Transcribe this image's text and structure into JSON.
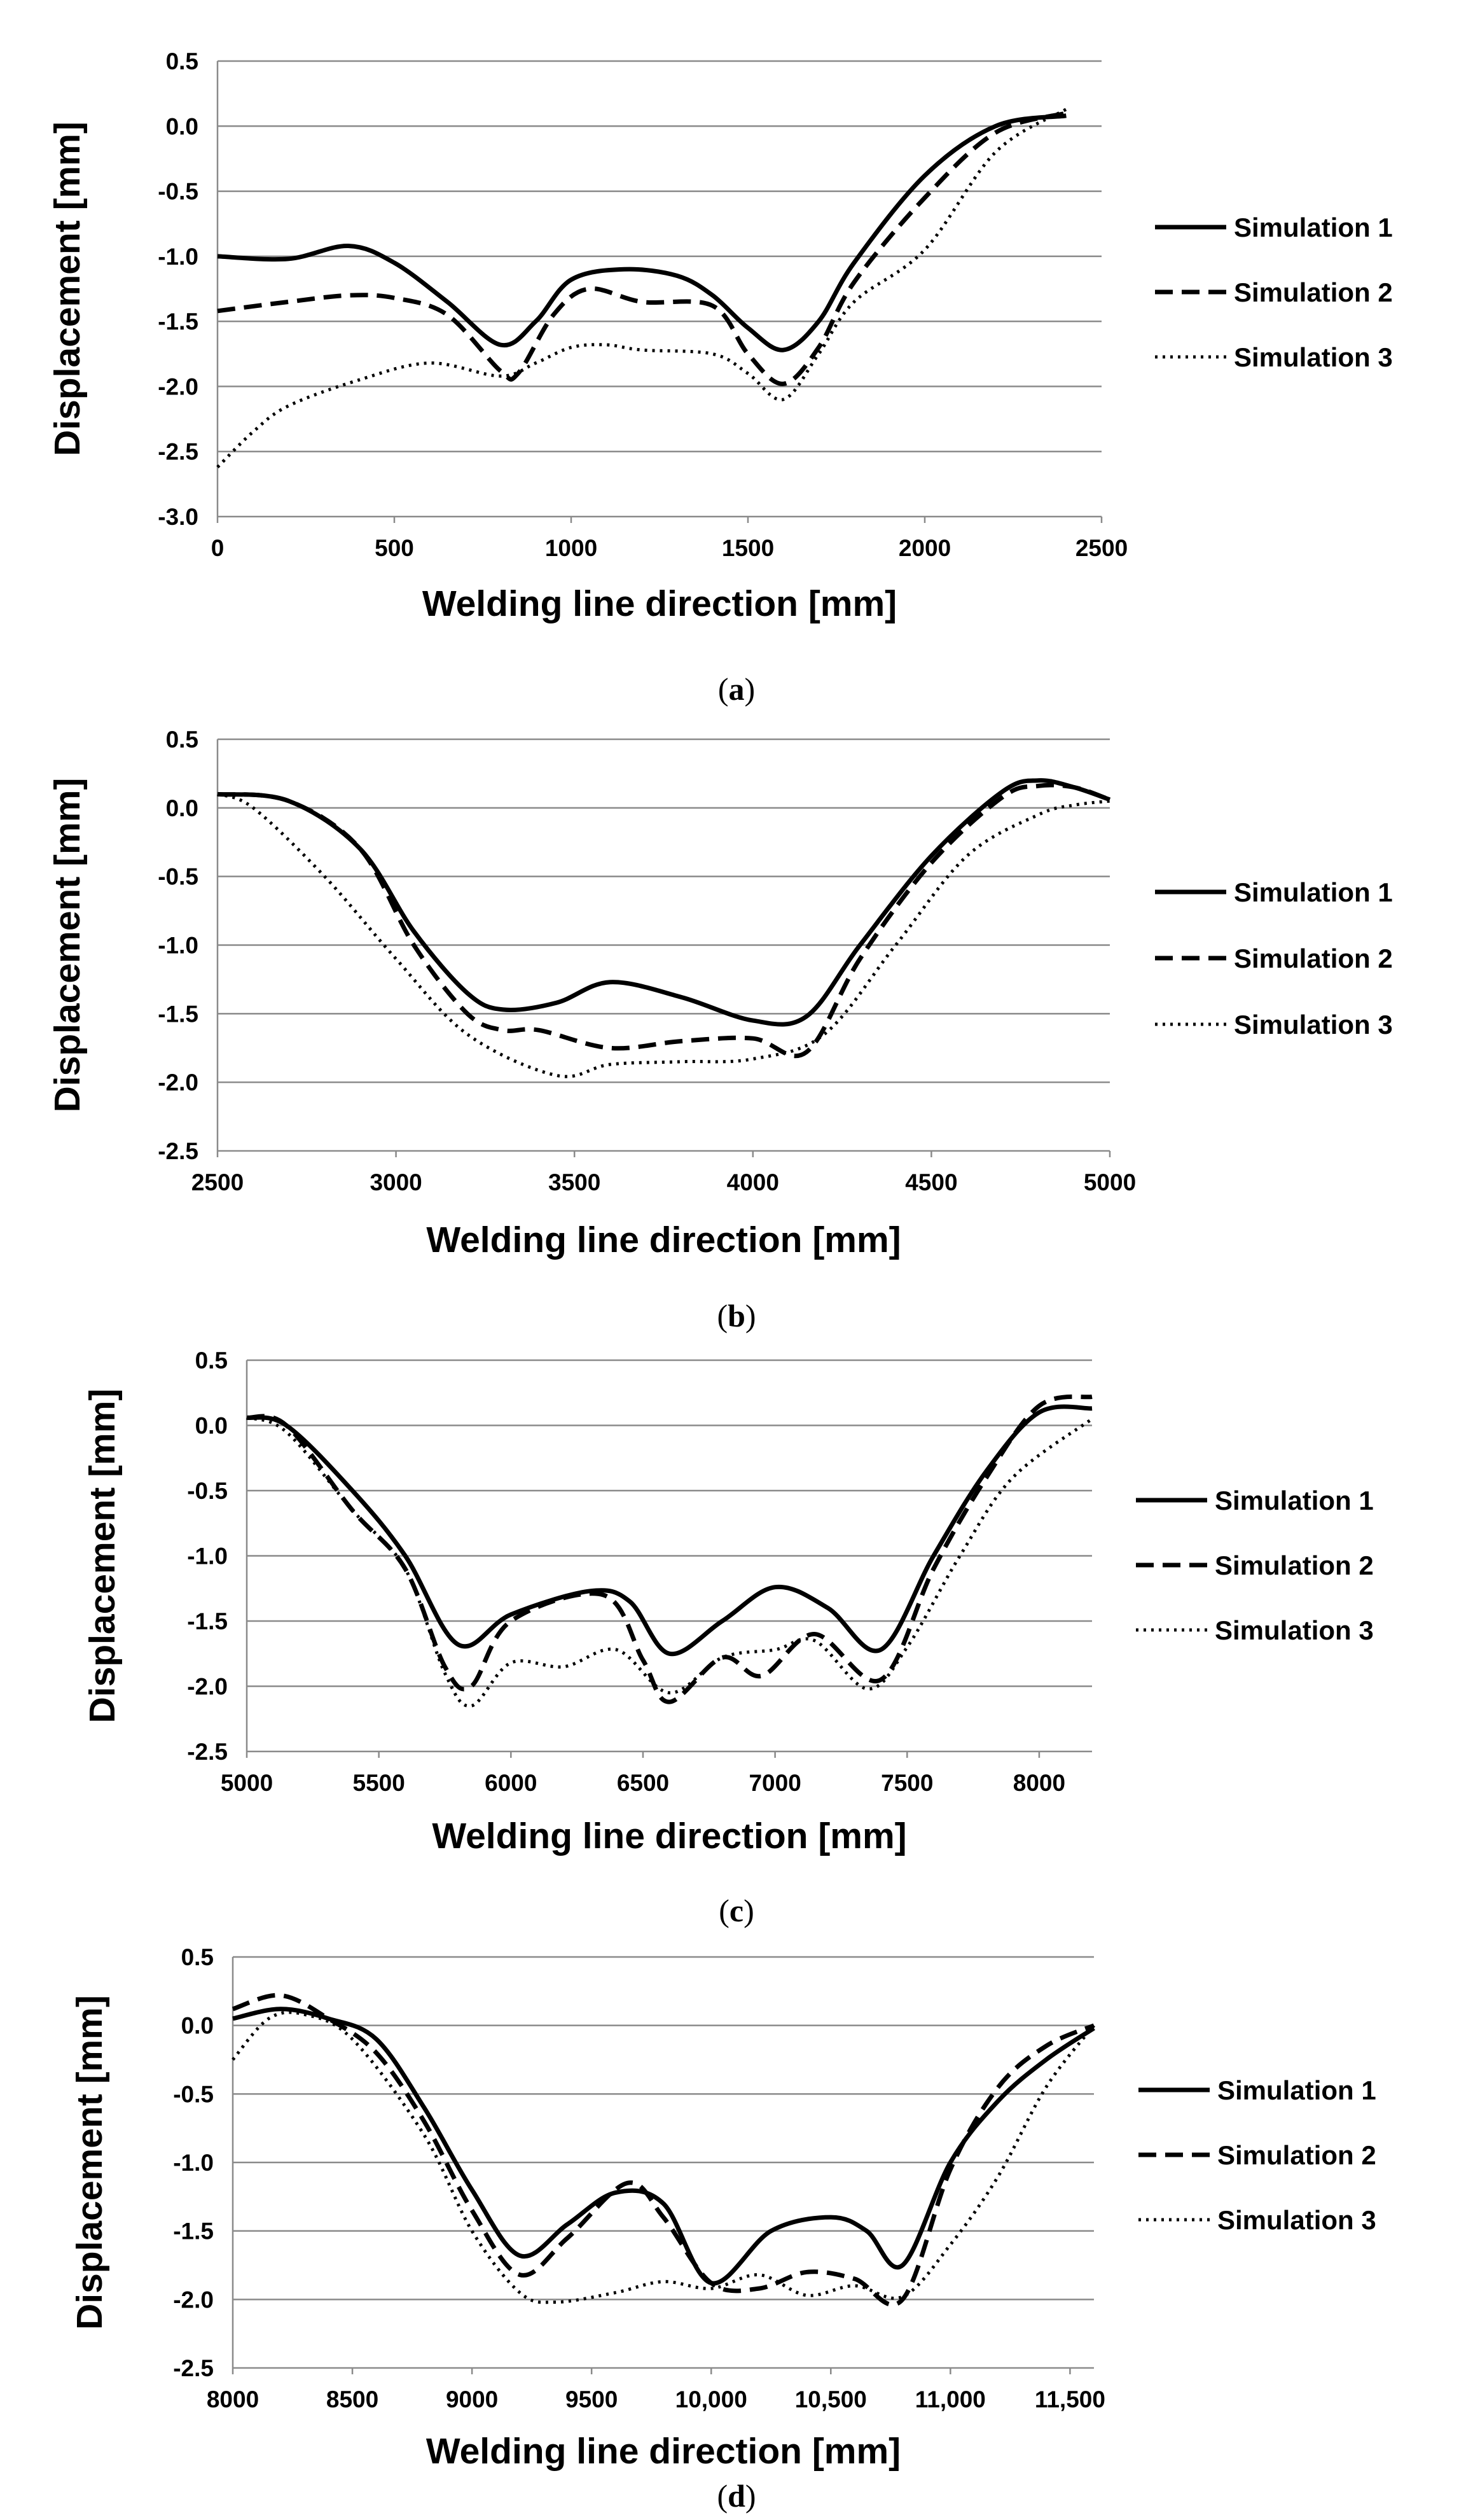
{
  "chart_data": [
    {
      "type": "line",
      "caption": "a",
      "xlabel": "Welding line direction [mm]",
      "ylabel": "Displacement [mm]",
      "xlim": [
        0,
        2500
      ],
      "ylim": [
        -3.0,
        0.5
      ],
      "xticks": [
        0,
        500,
        1000,
        1500,
        2000,
        2500
      ],
      "xtick_labels": [
        "0",
        "500",
        "1000",
        "1500",
        "2000",
        "2500"
      ],
      "yticks": [
        0.5,
        0.0,
        -0.5,
        -1.0,
        -1.5,
        -2.0,
        -2.5,
        -3.0
      ],
      "ytick_labels": [
        "0.5",
        "0.0",
        "-0.5",
        "-1.0",
        "-1.5",
        "-2.0",
        "-2.5",
        "-3.0"
      ],
      "grid": "horizontal",
      "legend": "right",
      "series": [
        {
          "name": "Simulation 1",
          "style": "solid",
          "x": [
            0,
            200,
            370,
            500,
            650,
            800,
            900,
            1000,
            1150,
            1300,
            1400,
            1500,
            1600,
            1700,
            1800,
            2000,
            2200,
            2400
          ],
          "y": [
            -1.0,
            -1.02,
            -0.92,
            -1.05,
            -1.35,
            -1.68,
            -1.5,
            -1.18,
            -1.1,
            -1.15,
            -1.3,
            -1.55,
            -1.72,
            -1.5,
            -1.05,
            -0.38,
            0.0,
            0.08
          ]
        },
        {
          "name": "Simulation 2",
          "style": "dashed",
          "x": [
            0,
            200,
            370,
            500,
            650,
            800,
            850,
            950,
            1050,
            1200,
            1400,
            1500,
            1600,
            1700,
            1800,
            2000,
            2200,
            2400
          ],
          "y": [
            -1.42,
            -1.35,
            -1.3,
            -1.32,
            -1.45,
            -1.88,
            -1.9,
            -1.45,
            -1.25,
            -1.35,
            -1.38,
            -1.75,
            -1.98,
            -1.7,
            -1.2,
            -0.55,
            -0.05,
            0.1
          ]
        },
        {
          "name": "Simulation 3",
          "style": "dotted",
          "x": [
            0,
            100,
            200,
            400,
            600,
            800,
            900,
            1000,
            1100,
            1200,
            1400,
            1500,
            1600,
            1700,
            1800,
            2000,
            2200,
            2400
          ],
          "y": [
            -2.62,
            -2.35,
            -2.15,
            -1.95,
            -1.82,
            -1.92,
            -1.82,
            -1.7,
            -1.68,
            -1.72,
            -1.75,
            -1.9,
            -2.1,
            -1.75,
            -1.35,
            -0.95,
            -0.2,
            0.13
          ]
        }
      ]
    },
    {
      "type": "line",
      "caption": "b",
      "xlabel": "Welding line direction [mm]",
      "ylabel": "Displacement [mm]",
      "xlim": [
        2500,
        5000
      ],
      "ylim": [
        -2.5,
        0.5
      ],
      "xticks": [
        2500,
        3000,
        3500,
        4000,
        4500,
        5000
      ],
      "xtick_labels": [
        "2500",
        "3000",
        "3500",
        "4000",
        "4500",
        "5000"
      ],
      "yticks": [
        0.5,
        0.0,
        -0.5,
        -1.0,
        -1.5,
        -2.0,
        -2.5
      ],
      "ytick_labels": [
        "0.5",
        "0.0",
        "-0.5",
        "-1.0",
        "-1.5",
        "-2.0",
        "-2.5"
      ],
      "grid": "horizontal",
      "legend": "right",
      "series": [
        {
          "name": "Simulation 1",
          "style": "solid",
          "x": [
            2500,
            2700,
            2900,
            3050,
            3200,
            3300,
            3450,
            3600,
            3800,
            4000,
            4150,
            4300,
            4500,
            4700,
            4800,
            4900,
            5000
          ],
          "y": [
            0.1,
            0.05,
            -0.3,
            -0.9,
            -1.35,
            -1.47,
            -1.42,
            -1.27,
            -1.38,
            -1.55,
            -1.52,
            -1.0,
            -0.35,
            0.12,
            0.2,
            0.15,
            0.06
          ]
        },
        {
          "name": "Simulation 2",
          "style": "dashed",
          "x": [
            2500,
            2700,
            2900,
            3050,
            3200,
            3300,
            3400,
            3600,
            3800,
            4000,
            4150,
            4300,
            4500,
            4700,
            4800,
            4900,
            5000
          ],
          "y": [
            0.1,
            0.05,
            -0.3,
            -1.0,
            -1.5,
            -1.62,
            -1.62,
            -1.75,
            -1.7,
            -1.68,
            -1.78,
            -1.1,
            -0.4,
            0.08,
            0.16,
            0.15,
            0.06
          ]
        },
        {
          "name": "Simulation 3",
          "style": "dotted",
          "x": [
            2500,
            2600,
            2800,
            3000,
            3200,
            3450,
            3600,
            3800,
            4000,
            4200,
            4400,
            4600,
            4800,
            4900,
            5000
          ],
          "y": [
            0.1,
            0.0,
            -0.5,
            -1.1,
            -1.65,
            -1.95,
            -1.87,
            -1.85,
            -1.83,
            -1.65,
            -1.0,
            -0.35,
            -0.05,
            0.02,
            0.05
          ]
        }
      ]
    },
    {
      "type": "line",
      "caption": "c",
      "xlabel": "Welding line direction [mm]",
      "ylabel": "Displacement [mm]",
      "xlim": [
        5000,
        8200
      ],
      "ylim": [
        -2.5,
        0.5
      ],
      "xticks": [
        5000,
        5500,
        6000,
        6500,
        7000,
        7500,
        8000
      ],
      "xtick_labels": [
        "5000",
        "5500",
        "6000",
        "6500",
        "7000",
        "7500",
        "8000"
      ],
      "yticks": [
        0.5,
        0.0,
        -0.5,
        -1.0,
        -1.5,
        -2.0,
        -2.5
      ],
      "ytick_labels": [
        "0.5",
        "0.0",
        "-0.5",
        "-1.0",
        "-1.5",
        "-2.0",
        "-2.5"
      ],
      "grid": "horizontal",
      "legend": "right",
      "series": [
        {
          "name": "Simulation 1",
          "style": "solid",
          "x": [
            5000,
            5150,
            5400,
            5600,
            5800,
            6000,
            6300,
            6450,
            6600,
            6800,
            7000,
            7200,
            7400,
            7600,
            7800,
            8000,
            8200
          ],
          "y": [
            0.06,
            0.0,
            -0.5,
            -1.0,
            -1.68,
            -1.45,
            -1.27,
            -1.35,
            -1.75,
            -1.5,
            -1.24,
            -1.4,
            -1.72,
            -1.0,
            -0.35,
            0.1,
            0.13
          ]
        },
        {
          "name": "Simulation 2",
          "style": "dashed",
          "x": [
            5000,
            5150,
            5400,
            5600,
            5750,
            5850,
            6000,
            6350,
            6500,
            6600,
            6800,
            6950,
            7150,
            7400,
            7600,
            7800,
            8000,
            8200
          ],
          "y": [
            0.06,
            0.0,
            -0.65,
            -1.1,
            -1.85,
            -2.0,
            -1.5,
            -1.3,
            -1.8,
            -2.12,
            -1.78,
            -1.92,
            -1.6,
            -1.95,
            -1.1,
            -0.4,
            0.15,
            0.22
          ]
        },
        {
          "name": "Simulation 3",
          "style": "dotted",
          "x": [
            5000,
            5150,
            5400,
            5600,
            5750,
            5850,
            6000,
            6200,
            6400,
            6600,
            6800,
            7000,
            7150,
            7350,
            7500,
            7700,
            7900,
            8200
          ],
          "y": [
            0.06,
            -0.05,
            -0.65,
            -1.1,
            -1.9,
            -2.15,
            -1.82,
            -1.85,
            -1.72,
            -2.05,
            -1.78,
            -1.72,
            -1.65,
            -2.02,
            -1.7,
            -1.0,
            -0.4,
            0.05
          ]
        }
      ]
    },
    {
      "type": "line",
      "caption": "d",
      "xlabel": "Welding line direction [mm]",
      "ylabel": "Displacement [mm]",
      "xlim": [
        8000,
        11600
      ],
      "ylim": [
        -2.5,
        0.5
      ],
      "xticks": [
        8000,
        8500,
        9000,
        9500,
        10000,
        10500,
        11000,
        11500
      ],
      "xtick_labels": [
        "8000",
        "8500",
        "9000",
        "9500",
        "10,000",
        "10,500",
        "11,000",
        "11,500"
      ],
      "yticks": [
        0.5,
        0.0,
        -0.5,
        -1.0,
        -1.5,
        -2.0,
        -2.5
      ],
      "ytick_labels": [
        "0.5",
        "0.0",
        "-0.5",
        "-1.0",
        "-1.5",
        "-2.0",
        "-2.5"
      ],
      "grid": "horizontal",
      "legend": "right",
      "series": [
        {
          "name": "Simulation 1",
          "style": "solid",
          "x": [
            8000,
            8200,
            8400,
            8600,
            8800,
            9000,
            9200,
            9400,
            9600,
            9800,
            10000,
            10250,
            10500,
            10650,
            10800,
            11000,
            11200,
            11400,
            11600
          ],
          "y": [
            0.05,
            0.12,
            0.05,
            -0.1,
            -0.6,
            -1.2,
            -1.68,
            -1.45,
            -1.22,
            -1.3,
            -1.88,
            -1.5,
            -1.4,
            -1.5,
            -1.75,
            -1.0,
            -0.55,
            -0.25,
            -0.02
          ]
        },
        {
          "name": "Simulation 2",
          "style": "dashed",
          "x": [
            8000,
            8200,
            8400,
            8600,
            8800,
            9000,
            9200,
            9400,
            9650,
            9800,
            10000,
            10200,
            10400,
            10600,
            10800,
            11000,
            11200,
            11400,
            11600
          ],
          "y": [
            0.12,
            0.22,
            0.05,
            -0.2,
            -0.7,
            -1.35,
            -1.82,
            -1.55,
            -1.15,
            -1.4,
            -1.88,
            -1.92,
            -1.8,
            -1.85,
            -2.0,
            -1.05,
            -0.45,
            -0.15,
            0.0
          ]
        },
        {
          "name": "Simulation 3",
          "style": "dotted",
          "x": [
            8000,
            8150,
            8300,
            8500,
            8800,
            9000,
            9200,
            9350,
            9600,
            9800,
            10000,
            10200,
            10400,
            10600,
            10800,
            11000,
            11200,
            11400,
            11600
          ],
          "y": [
            -0.25,
            0.05,
            0.08,
            -0.1,
            -0.8,
            -1.5,
            -1.95,
            -2.02,
            -1.95,
            -1.87,
            -1.92,
            -1.82,
            -1.97,
            -1.9,
            -1.98,
            -1.6,
            -1.1,
            -0.45,
            0.0
          ]
        }
      ]
    }
  ]
}
